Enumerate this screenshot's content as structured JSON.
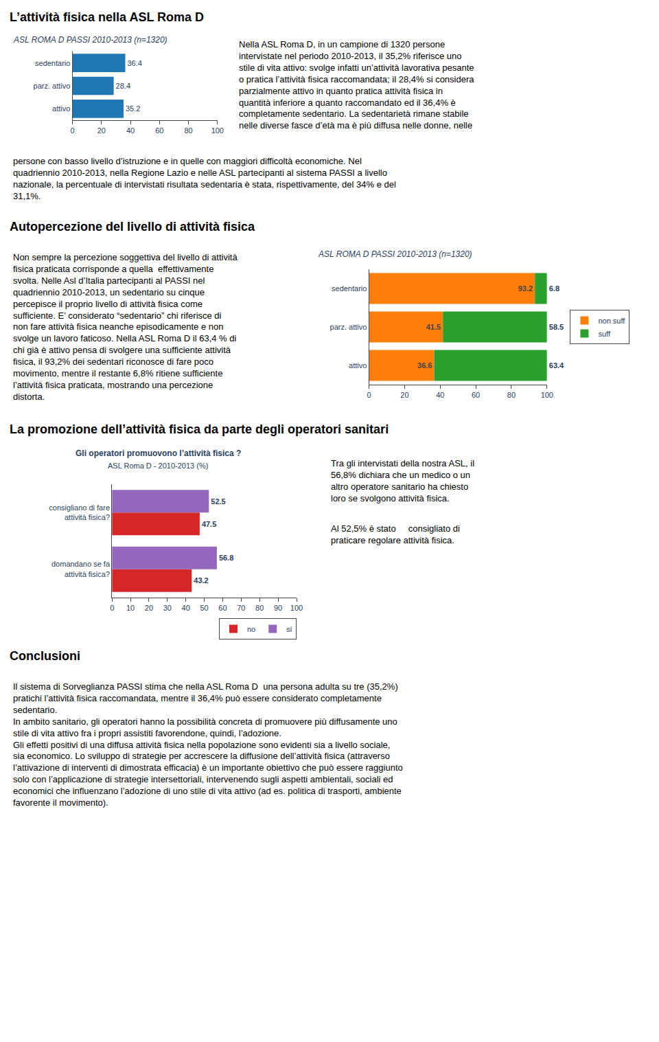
{
  "sections": [
    {
      "title": "L’attività fisica nella ASL Roma D",
      "annotations": [
        "Nella ASL Roma D, in un campione di 1320 persone\nintervistate nel periodo 2010-2013, il 35,2% riferisce uno\nstile di vita attivo: svolge infatti un’attività lavorativa pesante\no pratica l’attività fisica raccomandata; il 28,4% si considera\nparzialmente attivo in quanto pratica attività fisica in\nquantità inferiore a quanto raccomandato ed il 36,4% è\ncompletamente sedentario. La sedentarietà rimane stabile\nnelle diverse fasce d’età ma è più diffusa nelle donne, nelle",
        "persone con basso livello d’istruzione e in quelle con maggiori difficoltà economiche. Nel\nquadriennio 2010-2013, nella Regione Lazio e nelle ASL partecipanti al sistema PASSI a livello\nnazionale, la percentuale di intervistati risultata sedentaria è stata, rispettivamente, del 34% e del\n31,1%."
      ]
    },
    {
      "title": "Autopercezione del livello di attività fisica",
      "annotations": [
        "Non sempre la percezione soggettiva del livello di attività\nfisica praticata corrisponde a quella  effettivamente\nsvolta. Nelle Asl d’Italia partecipanti al PASSI nel\nquadriennio 2010-2013, un sedentario su cinque\npercepisce il proprio livello di attività fisica come\nsufficiente. E’ considerato “sedentario” chi riferisce di\nnon fare attività fisica neanche episodicamente e non\nsvolge un lavoro faticoso. Nella ASL Roma D il 63,4 % di\nchi già è attivo pensa di svolgere una sufficiente attività\nfisica, il 93,2% dei sedentari riconosce di fare poco\nmovimento, mentre il restante 6,8% ritiene sufficiente\nl’attività fisica praticata, mostrando una percezione\ndistorta."
      ]
    },
    {
      "title": "La promozione dell’attività fisica da parte degli operatori sanitari",
      "annotations": [
        "Tra gli intervistati della nostra ASL, il\n56,8% dichiara che un medico o un\naltro operatore sanitario ha chiesto\nloro se svolgono attività fisica.",
        "Al 52,5% è stato     consigliato di\npraticare regolare attività fisica."
      ]
    },
    {
      "title": "Conclusioni",
      "annotations": [
        "Il sistema di Sorveglianza PASSI stima che nella ASL Roma D  una persona adulta su tre (35,2%)\npratichi l’attività fisica raccomandata, mentre il 36,4% può essere considerato completamente\nsedentario.\nIn ambito sanitario, gli operatori hanno la possibilità concreta di promuovere più diffusamente uno\nstile di vita attivo fra i propri assistiti favorendone, quindi, l’adozione.\nGli effetti positivi di una diffusa attività fisica nella popolazione sono evidenti sia a livello sociale,\nsia economico. Lo sviluppo di strategie per accrescere la diffusione dell’attività fisica (attraverso\nl’attivazione di interventi di dimostrata efficacia) è un importante obiettivo che può essere raggiunto\nsolo con l’applicazione di strategie intersettoriali, intervenendo sugli aspetti ambientali, sociali ed\neconomici che influenzano l’adozione di uno stile di vita attivo (ad es. politica di trasporti, ambiente\nfavorente il movimento)."
      ]
    }
  ],
  "chart_data": [
    {
      "type": "bar",
      "orientation": "horizontal",
      "title": "ASL ROMA D PASSI 2010-2013 (n=1320)",
      "categories": [
        "attivo",
        "parz. attivo",
        "sedentario"
      ],
      "values": [
        35.2,
        28.4,
        36.4
      ],
      "xlim": [
        0,
        100
      ],
      "xticks": [
        0,
        20,
        40,
        60,
        80,
        100
      ],
      "data_labels": true,
      "grid": false
    },
    {
      "type": "bar",
      "orientation": "horizontal",
      "stacked": true,
      "title": "ASL ROMA D PASSI 2010-2013 (n=1320)",
      "categories": [
        "attivo",
        "parz. attivo",
        "sedentario"
      ],
      "series": [
        {
          "name": "non suff",
          "values": [
            36.6,
            41.5,
            93.2
          ]
        },
        {
          "name": "suff",
          "values": [
            63.4,
            58.5,
            6.8
          ]
        }
      ],
      "xlim": [
        0,
        100
      ],
      "xticks": [
        0,
        20,
        40,
        60,
        80,
        100
      ],
      "data_labels": true,
      "grid": false,
      "legend": "right"
    },
    {
      "type": "bar",
      "orientation": "horizontal",
      "title": "Gli operatori promuovono l’attività fisica ?",
      "subtitle": "ASL Roma D - 2010-2013 (%)",
      "categories": [
        "domandano se fa\nattività fisica?",
        "consigliano di fare\nattività fisica?"
      ],
      "series": [
        {
          "name": "no",
          "values": [
            43.2,
            47.5
          ]
        },
        {
          "name": "si",
          "values": [
            56.8,
            52.5
          ]
        }
      ],
      "xlim": [
        0,
        100
      ],
      "xticks": [
        0,
        10,
        20,
        30,
        40,
        50,
        60,
        70,
        80,
        90,
        100
      ],
      "data_labels": true,
      "grid": false,
      "legend": "lower right"
    }
  ]
}
